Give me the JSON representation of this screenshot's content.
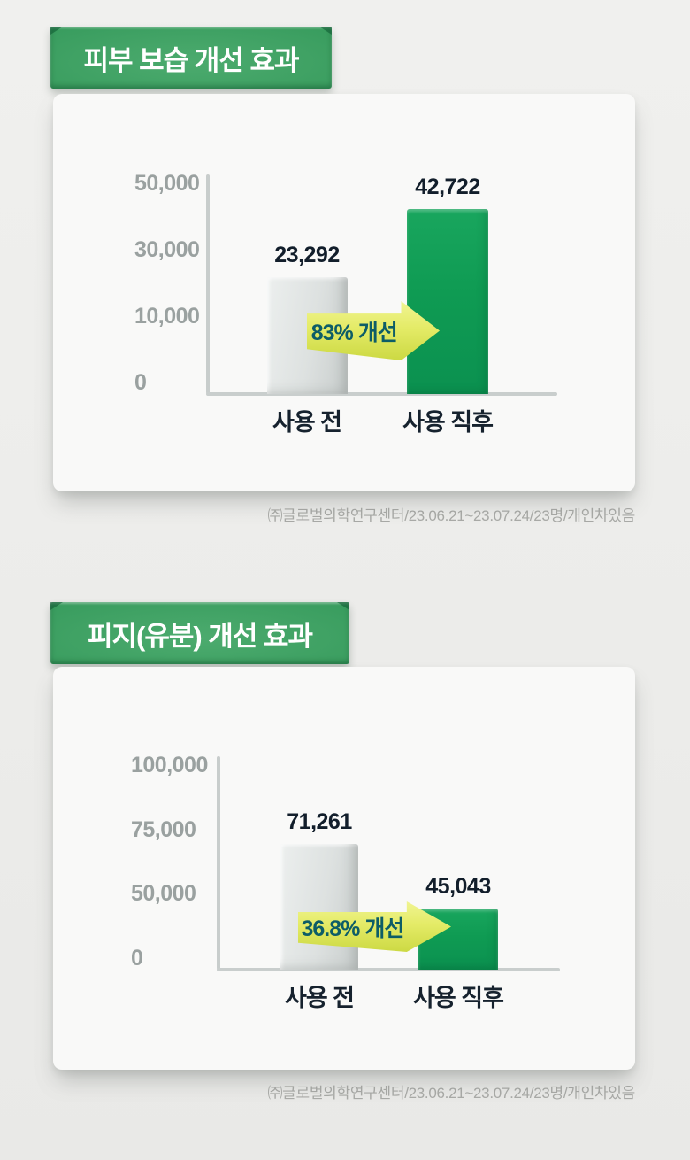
{
  "colors": {
    "accent_green": "#0f9b53",
    "banner_green": "#379b5d",
    "before_bar_gray": "#d9dddc",
    "arrow_yellow": "#e4eb67",
    "annotation_teal": "#0d5d67",
    "tick_gray": "#9aa1a0",
    "label_dark": "#121e2b"
  },
  "sections": [
    {
      "banner": "피부 보습 개선 효과",
      "source": "㈜글로벌의학연구센터/23.06.21~23.07.24/23명/개인차있음"
    },
    {
      "banner": "피지(유분) 개선 효과",
      "source": "㈜글로벌의학연구센터/23.06.21~23.07.24/23명/개인차있음"
    }
  ],
  "chart_data": [
    {
      "type": "bar",
      "title": "피부 보습 개선 효과",
      "categories": [
        "사용 전",
        "사용 직후"
      ],
      "values": [
        23292,
        42722
      ],
      "value_labels": [
        "23,292",
        "42,722"
      ],
      "yticks": [
        0,
        10000,
        30000,
        50000
      ],
      "ytick_labels": [
        "0",
        "10,000",
        "30,000",
        "50,000"
      ],
      "ylim": [
        0,
        50000
      ],
      "annotation": "83% 개선",
      "series_colors": [
        "#d9dddc",
        "#0f9b53"
      ],
      "grid": false,
      "legend": "none",
      "axis_note": "ticks evenly spaced (non-linear scale)",
      "source": "㈜글로벌의학연구센터/23.06.21~23.07.24/23명/개인차있음"
    },
    {
      "type": "bar",
      "title": "피지(유분) 개선 효과",
      "categories": [
        "사용 전",
        "사용 직후"
      ],
      "values": [
        71261,
        45043
      ],
      "value_labels": [
        "71,261",
        "45,043"
      ],
      "yticks": [
        0,
        50000,
        75000,
        100000
      ],
      "ytick_labels": [
        "0",
        "50,000",
        "75,000",
        "100,000"
      ],
      "ylim": [
        0,
        100000
      ],
      "annotation": "36.8% 개선",
      "series_colors": [
        "#d9dddc",
        "#0f9b53"
      ],
      "grid": false,
      "legend": "none",
      "axis_note": "ticks evenly spaced (non-linear scale)",
      "source": "㈜글로벌의학연구센터/23.06.21~23.07.24/23명/개인차있음"
    }
  ]
}
